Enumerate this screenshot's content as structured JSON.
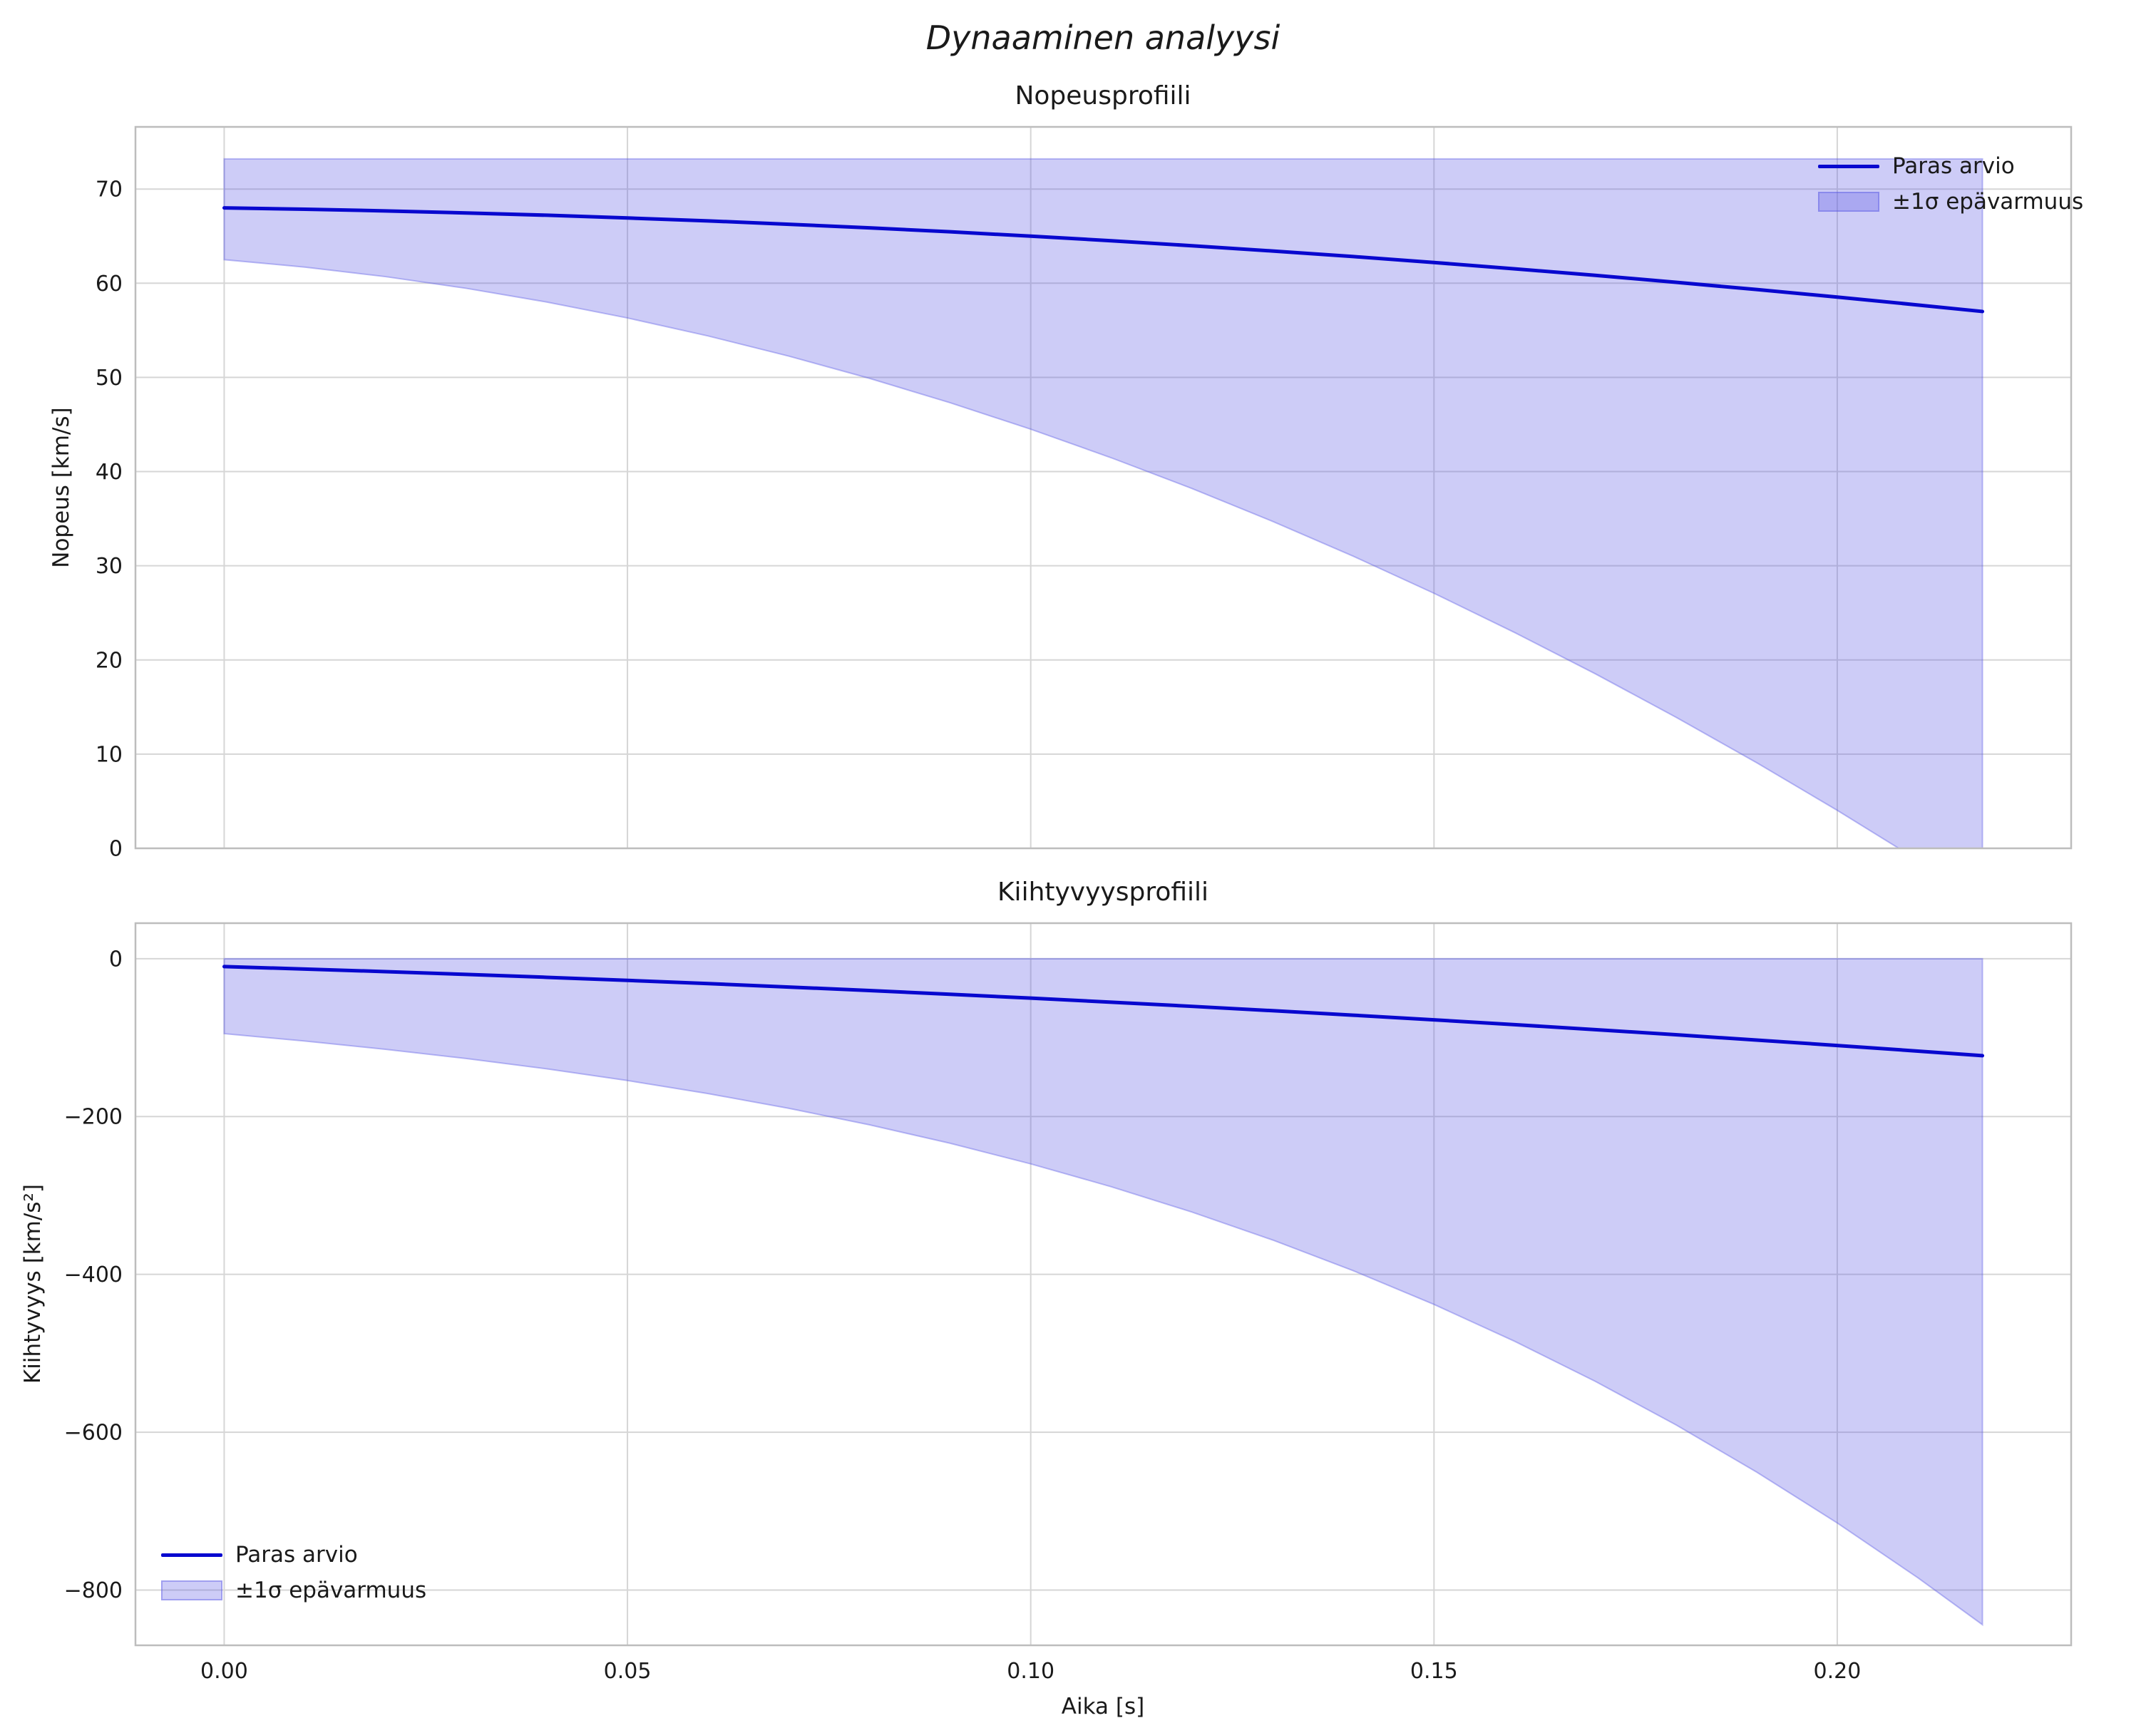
{
  "figure": {
    "title": "Dynaaminen analyysi"
  },
  "colors": {
    "line": "#0808cf",
    "band_fill": "rgba(88,86,228,0.30)",
    "band_edge": "rgba(88,86,228,0.38)",
    "grid": "#d6d6d6",
    "spine": "#bdbdbd",
    "text": "#1a1a1a"
  },
  "chart_data": [
    {
      "type": "line",
      "title": "Nopeusprofiili",
      "ylabel": "Nopeus [km/s]",
      "xlabel": "",
      "x": [
        0,
        0.01,
        0.02,
        0.03,
        0.04,
        0.05,
        0.06,
        0.07,
        0.08,
        0.09,
        0.1,
        0.11,
        0.12,
        0.13,
        0.14,
        0.15,
        0.16,
        0.17,
        0.18,
        0.19,
        0.2,
        0.21,
        0.218
      ],
      "series": [
        {
          "name": "Paras arvio",
          "role": "line",
          "values": [
            68.0,
            67.86,
            67.68,
            67.46,
            67.22,
            66.93,
            66.62,
            66.26,
            65.88,
            65.46,
            65.0,
            64.51,
            63.98,
            63.42,
            62.83,
            62.2,
            61.53,
            60.84,
            60.1,
            59.33,
            58.53,
            57.69,
            57.0
          ]
        },
        {
          "name": "±1σ epävarmuus",
          "role": "band",
          "upper": [
            73.2,
            73.2,
            73.2,
            73.2,
            73.2,
            73.2,
            73.2,
            73.2,
            73.2,
            73.2,
            73.2,
            73.2,
            73.2,
            73.2,
            73.2,
            73.2,
            73.2,
            73.2,
            73.2,
            73.2,
            73.2,
            73.2,
            73.2
          ],
          "lower": [
            62.5,
            61.71,
            60.7,
            59.46,
            58.0,
            56.31,
            54.4,
            52.26,
            49.9,
            47.31,
            44.5,
            41.46,
            38.2,
            34.71,
            31.01,
            27.08,
            22.91,
            18.53,
            13.92,
            9.09,
            4.03,
            -1.26,
            -5.63
          ]
        }
      ],
      "xlim": [
        -0.011,
        0.229
      ],
      "ylim": [
        0,
        76.6
      ],
      "xticks": [
        0,
        0.05,
        0.1,
        0.15,
        0.2
      ],
      "xtick_labels": [
        "0.00",
        "0.05",
        "0.10",
        "0.15",
        "0.20"
      ],
      "show_xtick_labels": false,
      "yticks": [
        0,
        10,
        20,
        30,
        40,
        50,
        60,
        70
      ],
      "ytick_labels": [
        "0",
        "10",
        "20",
        "30",
        "40",
        "50",
        "60",
        "70"
      ],
      "grid": true,
      "legend": {
        "position": "upper right",
        "entries": [
          "Paras arvio",
          "±1σ epävarmuus"
        ]
      }
    },
    {
      "type": "line",
      "title": "Kiihtyvyysprofiili",
      "ylabel": "Kiihtyvyys [km/s²]",
      "xlabel": "Aika [s]",
      "x": [
        0,
        0.01,
        0.02,
        0.03,
        0.04,
        0.05,
        0.06,
        0.07,
        0.08,
        0.09,
        0.1,
        0.11,
        0.12,
        0.13,
        0.14,
        0.15,
        0.16,
        0.17,
        0.18,
        0.19,
        0.2,
        0.21,
        0.218
      ],
      "series": [
        {
          "name": "Paras arvio",
          "role": "line",
          "values": [
            -10.0,
            -13.1,
            -16.4,
            -19.9,
            -23.6,
            -27.5,
            -31.6,
            -35.9,
            -40.4,
            -45.1,
            -50.0,
            -55.1,
            -60.4,
            -65.9,
            -71.6,
            -77.5,
            -83.6,
            -89.9,
            -96.4,
            -103.1,
            -110.0,
            -117.1,
            -122.9
          ]
        },
        {
          "name": "±1σ epävarmuus",
          "role": "band",
          "upper": [
            0,
            0,
            0,
            0,
            0,
            0,
            0,
            0,
            0,
            0,
            0,
            0,
            0,
            0,
            0,
            0,
            0,
            0,
            0,
            0,
            0,
            0,
            0
          ],
          "lower": [
            -95.0,
            -104.4,
            -114.9,
            -126.5,
            -139.6,
            -154.4,
            -171.0,
            -189.6,
            -210.5,
            -233.9,
            -260.0,
            -289.0,
            -321.1,
            -356.5,
            -395.4,
            -438.1,
            -484.8,
            -535.6,
            -590.7,
            -650.5,
            -715.0,
            -784.5,
            -843.9
          ]
        }
      ],
      "xlim": [
        -0.011,
        0.229
      ],
      "ylim": [
        -870,
        45
      ],
      "xticks": [
        0,
        0.05,
        0.1,
        0.15,
        0.2
      ],
      "xtick_labels": [
        "0.00",
        "0.05",
        "0.10",
        "0.15",
        "0.20"
      ],
      "show_xtick_labels": true,
      "yticks": [
        0,
        -200,
        -400,
        -600,
        -800
      ],
      "ytick_labels": [
        "0",
        "−200",
        "−400",
        "−600",
        "−800"
      ],
      "grid": true,
      "legend": {
        "position": "lower left",
        "entries": [
          "Paras arvio",
          "±1σ epävarmuus"
        ]
      }
    }
  ]
}
